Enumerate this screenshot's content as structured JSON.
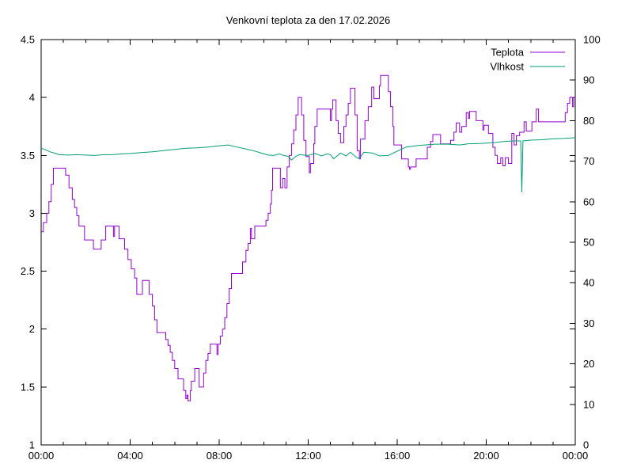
{
  "title": "Venkovní teplota za den 17.02.2026",
  "legend": {
    "position": "top-right-inside",
    "items": [
      {
        "label": "Teplota",
        "color": "#9400d3"
      },
      {
        "label": "Vlhkost",
        "color": "#009e73"
      }
    ]
  },
  "colors": {
    "temperature": "#9400d3",
    "humidity": "#009e73",
    "axis": "#000000",
    "background": "#ffffff"
  },
  "chart_data": {
    "type": "line",
    "title": "Venkovní teplota za den 17.02.2026",
    "grid": false,
    "legend_position": "top-right-inside",
    "x_axis": {
      "unit": "hours",
      "range": [
        0,
        24
      ],
      "major_tick_hours": 4,
      "minor_tick_hours": 1,
      "tick_labels": [
        "00:00",
        "04:00",
        "08:00",
        "12:00",
        "16:00",
        "20:00",
        "00:00"
      ]
    },
    "y_axis_left": {
      "series": "Teplota",
      "range": [
        1,
        4.5
      ],
      "ticks": [
        1,
        1.5,
        2,
        2.5,
        3,
        3.5,
        4,
        4.5
      ]
    },
    "y_axis_right": {
      "series": "Vlhkost",
      "range": [
        0,
        100
      ],
      "ticks": [
        0,
        10,
        20,
        30,
        40,
        50,
        60,
        70,
        80,
        90,
        100
      ]
    },
    "series": [
      {
        "name": "Teplota",
        "axis": "left",
        "color": "#9400d3",
        "style": "steps",
        "points": [
          [
            0.0,
            2.84
          ],
          [
            0.1,
            2.92
          ],
          [
            0.25,
            3.0
          ],
          [
            0.35,
            3.1
          ],
          [
            0.45,
            3.25
          ],
          [
            0.55,
            3.39
          ],
          [
            1.1,
            3.33
          ],
          [
            1.25,
            3.22
          ],
          [
            1.4,
            3.12
          ],
          [
            1.5,
            3.05
          ],
          [
            1.6,
            2.98
          ],
          [
            1.7,
            2.89
          ],
          [
            1.95,
            2.77
          ],
          [
            2.35,
            2.69
          ],
          [
            2.7,
            2.77
          ],
          [
            2.9,
            2.89
          ],
          [
            3.25,
            2.8
          ],
          [
            3.3,
            2.89
          ],
          [
            3.5,
            2.78
          ],
          [
            3.75,
            2.69
          ],
          [
            3.9,
            2.6
          ],
          [
            4.05,
            2.52
          ],
          [
            4.2,
            2.44
          ],
          [
            4.3,
            2.3
          ],
          [
            4.55,
            2.42
          ],
          [
            4.85,
            2.3
          ],
          [
            5.0,
            2.2
          ],
          [
            5.1,
            2.08
          ],
          [
            5.2,
            1.97
          ],
          [
            5.6,
            1.91
          ],
          [
            5.7,
            1.86
          ],
          [
            5.8,
            1.8
          ],
          [
            5.9,
            1.73
          ],
          [
            6.0,
            1.66
          ],
          [
            6.15,
            1.57
          ],
          [
            6.4,
            1.47
          ],
          [
            6.5,
            1.4
          ],
          [
            6.55,
            1.43
          ],
          [
            6.6,
            1.38
          ],
          [
            6.7,
            1.47
          ],
          [
            6.75,
            1.55
          ],
          [
            6.9,
            1.66
          ],
          [
            7.1,
            1.5
          ],
          [
            7.3,
            1.62
          ],
          [
            7.4,
            1.73
          ],
          [
            7.5,
            1.79
          ],
          [
            7.6,
            1.87
          ],
          [
            7.9,
            1.78
          ],
          [
            7.95,
            1.87
          ],
          [
            8.05,
            1.94
          ],
          [
            8.15,
            2.0
          ],
          [
            8.25,
            2.1
          ],
          [
            8.35,
            2.22
          ],
          [
            8.45,
            2.35
          ],
          [
            8.55,
            2.48
          ],
          [
            9.05,
            2.58
          ],
          [
            9.2,
            2.68
          ],
          [
            9.3,
            2.74
          ],
          [
            9.4,
            2.87
          ],
          [
            9.45,
            2.78
          ],
          [
            9.6,
            2.89
          ],
          [
            10.1,
            2.94
          ],
          [
            10.2,
            3.0
          ],
          [
            10.3,
            3.08
          ],
          [
            10.35,
            3.2
          ],
          [
            10.4,
            3.39
          ],
          [
            10.75,
            3.22
          ],
          [
            10.85,
            3.3
          ],
          [
            10.95,
            3.22
          ],
          [
            11.05,
            3.4
          ],
          [
            11.15,
            3.5
          ],
          [
            11.25,
            3.6
          ],
          [
            11.35,
            3.72
          ],
          [
            11.45,
            3.85
          ],
          [
            11.55,
            4.0
          ],
          [
            11.7,
            3.85
          ],
          [
            11.8,
            3.63
          ],
          [
            11.9,
            3.49
          ],
          [
            12.05,
            3.35
          ],
          [
            12.1,
            3.43
          ],
          [
            12.25,
            3.6
          ],
          [
            12.3,
            3.75
          ],
          [
            12.4,
            3.9
          ],
          [
            13.0,
            3.8
          ],
          [
            13.05,
            3.9
          ],
          [
            13.1,
            3.98
          ],
          [
            13.25,
            3.8
          ],
          [
            13.35,
            3.69
          ],
          [
            13.45,
            3.61
          ],
          [
            13.6,
            3.75
          ],
          [
            13.7,
            3.85
          ],
          [
            13.8,
            3.95
          ],
          [
            13.9,
            4.08
          ],
          [
            14.1,
            3.85
          ],
          [
            14.2,
            3.54
          ],
          [
            14.3,
            3.47
          ],
          [
            14.35,
            3.64
          ],
          [
            14.55,
            3.8
          ],
          [
            14.7,
            3.92
          ],
          [
            14.85,
            4.09
          ],
          [
            14.95,
            3.99
          ],
          [
            15.2,
            4.1
          ],
          [
            15.25,
            4.19
          ],
          [
            15.6,
            4.05
          ],
          [
            15.7,
            3.92
          ],
          [
            15.8,
            3.75
          ],
          [
            15.85,
            3.59
          ],
          [
            16.2,
            3.47
          ],
          [
            16.5,
            3.4
          ],
          [
            16.55,
            3.38
          ],
          [
            16.6,
            3.4
          ],
          [
            16.85,
            3.47
          ],
          [
            17.35,
            3.57
          ],
          [
            17.5,
            3.62
          ],
          [
            17.6,
            3.68
          ],
          [
            17.95,
            3.6
          ],
          [
            18.4,
            3.63
          ],
          [
            18.55,
            3.7
          ],
          [
            18.65,
            3.78
          ],
          [
            18.8,
            3.7
          ],
          [
            18.9,
            3.75
          ],
          [
            19.1,
            3.87
          ],
          [
            19.2,
            3.82
          ],
          [
            19.25,
            3.88
          ],
          [
            19.55,
            3.8
          ],
          [
            19.85,
            3.72
          ],
          [
            19.9,
            3.76
          ],
          [
            20.1,
            3.69
          ],
          [
            20.3,
            3.57
          ],
          [
            20.4,
            3.5
          ],
          [
            20.5,
            3.43
          ],
          [
            20.65,
            3.48
          ],
          [
            20.75,
            3.41
          ],
          [
            20.85,
            3.48
          ],
          [
            21.0,
            3.43
          ],
          [
            21.15,
            3.69
          ],
          [
            21.25,
            3.59
          ],
          [
            21.35,
            3.67
          ],
          [
            21.5,
            3.7
          ],
          [
            21.7,
            3.79
          ],
          [
            21.8,
            3.71
          ],
          [
            22.05,
            3.79
          ],
          [
            22.25,
            3.9
          ],
          [
            22.35,
            3.79
          ],
          [
            23.55,
            3.87
          ],
          [
            23.65,
            3.95
          ],
          [
            23.75,
            4.0
          ],
          [
            23.88,
            3.92
          ],
          [
            23.93,
            4.0
          ],
          [
            24.0,
            4.0
          ]
        ]
      },
      {
        "name": "Vlhkost",
        "axis": "right",
        "color": "#009e73",
        "style": "line",
        "points": [
          [
            0,
            73.2
          ],
          [
            0.2,
            72.8
          ],
          [
            0.4,
            72.3
          ],
          [
            0.6,
            72.0
          ],
          [
            0.8,
            71.6
          ],
          [
            1.2,
            71.5
          ],
          [
            1.6,
            71.6
          ],
          [
            2.0,
            71.5
          ],
          [
            2.4,
            71.4
          ],
          [
            2.8,
            71.6
          ],
          [
            3.2,
            71.6
          ],
          [
            3.6,
            71.8
          ],
          [
            4.0,
            71.9
          ],
          [
            4.5,
            72.1
          ],
          [
            5.0,
            72.3
          ],
          [
            5.5,
            72.6
          ],
          [
            6.0,
            72.9
          ],
          [
            6.5,
            73.2
          ],
          [
            7.0,
            73.3
          ],
          [
            7.5,
            73.5
          ],
          [
            8.0,
            73.8
          ],
          [
            8.4,
            74.0
          ],
          [
            8.8,
            73.5
          ],
          [
            9.2,
            73.0
          ],
          [
            9.6,
            72.5
          ],
          [
            9.9,
            72.0
          ],
          [
            10.2,
            71.5
          ],
          [
            10.45,
            71.4
          ],
          [
            10.7,
            71.8
          ],
          [
            10.9,
            71.4
          ],
          [
            11.1,
            71.2
          ],
          [
            11.25,
            70.3
          ],
          [
            11.45,
            71.2
          ],
          [
            11.6,
            71.6
          ],
          [
            11.8,
            71.5
          ],
          [
            12.0,
            71.4
          ],
          [
            12.3,
            71.9
          ],
          [
            12.6,
            71.3
          ],
          [
            12.85,
            71.8
          ],
          [
            13.0,
            71.6
          ],
          [
            13.15,
            70.6
          ],
          [
            13.45,
            72.0
          ],
          [
            13.7,
            71.3
          ],
          [
            13.9,
            72.2
          ],
          [
            14.15,
            71.0
          ],
          [
            14.3,
            70.6
          ],
          [
            14.5,
            72.2
          ],
          [
            14.9,
            72.0
          ],
          [
            15.2,
            71.3
          ],
          [
            15.6,
            71.4
          ],
          [
            15.9,
            72.2
          ],
          [
            16.4,
            73.5
          ],
          [
            17.0,
            73.9
          ],
          [
            17.7,
            74.2
          ],
          [
            18.3,
            74.2
          ],
          [
            18.8,
            74.0
          ],
          [
            19.2,
            74.3
          ],
          [
            19.8,
            74.4
          ],
          [
            20.4,
            74.6
          ],
          [
            20.9,
            74.9
          ],
          [
            21.3,
            75.0
          ],
          [
            21.55,
            75.0
          ],
          [
            21.6,
            62.3
          ],
          [
            21.65,
            75.0
          ],
          [
            22.0,
            75.2
          ],
          [
            22.5,
            75.3
          ],
          [
            23.0,
            75.5
          ],
          [
            23.5,
            75.6
          ],
          [
            24.0,
            75.8
          ]
        ]
      }
    ]
  }
}
